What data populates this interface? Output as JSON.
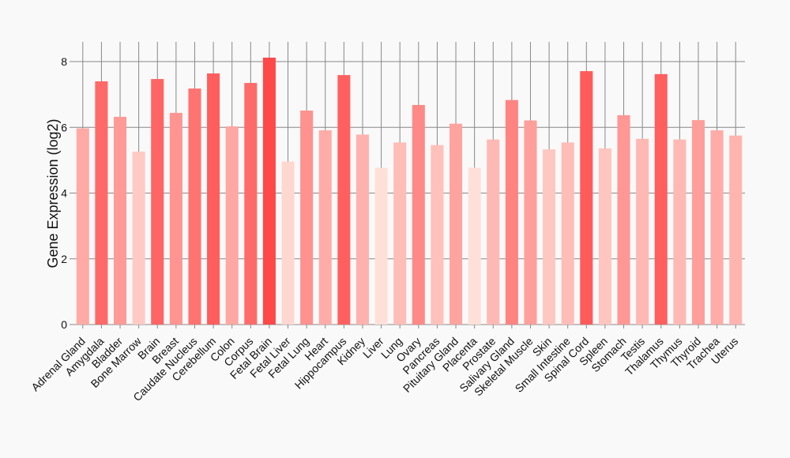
{
  "chart_data": {
    "type": "bar",
    "title": "",
    "xlabel": "",
    "ylabel": "Gene Expression (log2)",
    "ylim": [
      0,
      8.2
    ],
    "yticks": [
      0,
      2,
      4,
      6,
      8
    ],
    "grid": true,
    "categories": [
      "Adrenal Gland",
      "Amygdala",
      "Bladder",
      "Bone Marrow",
      "Brain",
      "Breast",
      "Caudate Nucleus",
      "Cerebellum",
      "Colon",
      "Corpus",
      "Fetal Brain",
      "Fetal Liver",
      "Fetal Lung",
      "Heart",
      "Hippocampus",
      "Kidney",
      "Liver",
      "Lung",
      "Ovary",
      "Pancreas",
      "Pituitary Gland",
      "Placenta",
      "Prostate",
      "Salivary Gland",
      "Skeletal Muscle",
      "Skin",
      "Small Intestine",
      "Spinal Cord",
      "Spleen",
      "Stomach",
      "Testis",
      "Thalamus",
      "Thymus",
      "Thyroid",
      "Trachea",
      "Uterus"
    ],
    "values": [
      5.97,
      7.4,
      6.32,
      5.26,
      7.47,
      6.44,
      7.18,
      7.64,
      6.03,
      7.35,
      8.12,
      4.96,
      6.51,
      5.91,
      7.59,
      5.78,
      4.77,
      5.54,
      6.68,
      5.46,
      6.11,
      4.77,
      5.63,
      6.83,
      6.21,
      5.33,
      5.54,
      7.71,
      5.36,
      6.37,
      5.65,
      7.62,
      5.63,
      6.22,
      5.91,
      5.75
    ]
  }
}
